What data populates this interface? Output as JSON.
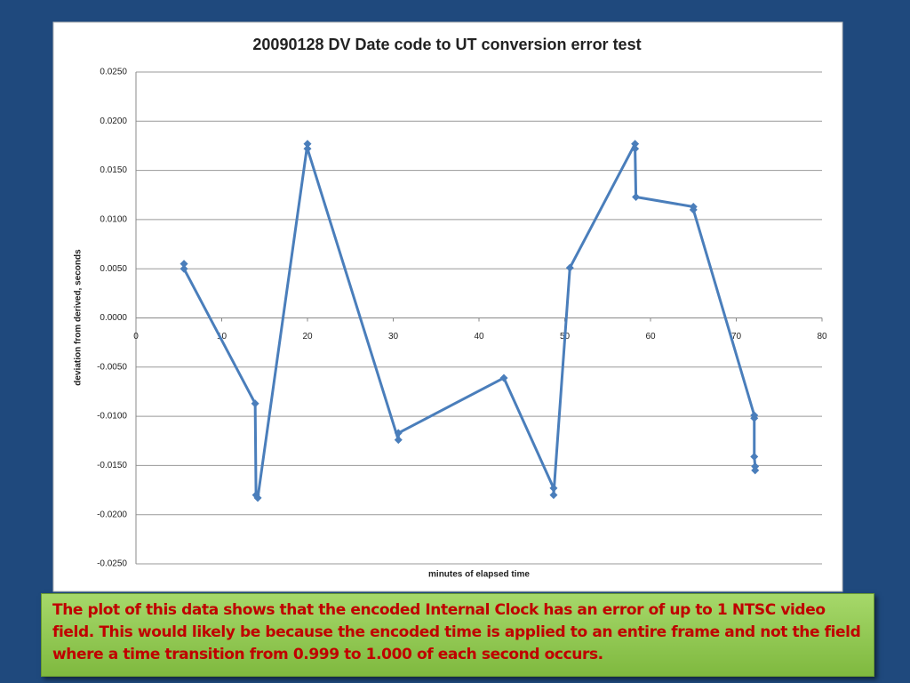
{
  "chart_data": {
    "type": "line",
    "title": "20090128 DV Date code to UT conversion error test",
    "x_label": "minutes of elapsed time",
    "y_label": "deviation from derived,  seconds",
    "x": [
      5.6,
      5.6,
      13.9,
      14.0,
      14.2,
      20.0,
      20.0,
      30.6,
      30.6,
      42.9,
      48.7,
      48.7,
      50.6,
      58.2,
      58.2,
      58.3,
      65.0,
      65.0,
      72.1,
      72.1,
      72.1,
      72.2,
      72.2
    ],
    "values": [
      0.0055,
      0.005,
      -0.0087,
      -0.018,
      -0.0183,
      0.0177,
      0.0172,
      -0.0124,
      -0.0117,
      -0.0061,
      -0.0173,
      -0.018,
      0.0051,
      0.0177,
      0.0172,
      0.0123,
      0.0113,
      0.011,
      -0.0099,
      -0.0102,
      -0.0141,
      -0.0151,
      -0.0155
    ],
    "color": "#4a7ebb",
    "xlim": [
      0,
      80
    ],
    "xticks": [
      0,
      10,
      20,
      30,
      40,
      50,
      60,
      70,
      80
    ],
    "ylim": [
      -0.025,
      0.025
    ],
    "yticks": [
      {
        "value": 0.025,
        "label": "0.0250"
      },
      {
        "value": 0.02,
        "label": "0.0200"
      },
      {
        "value": 0.015,
        "label": "0.0150"
      },
      {
        "value": 0.01,
        "label": "0.0100"
      },
      {
        "value": 0.005,
        "label": "0.0050"
      },
      {
        "value": 0,
        "label": "0.0000"
      },
      {
        "value": -0.005,
        "label": "-0.0050"
      },
      {
        "value": -0.01,
        "label": "-0.0100"
      },
      {
        "value": -0.015,
        "label": "-0.0150"
      },
      {
        "value": -0.02,
        "label": "-0.0200"
      },
      {
        "value": -0.025,
        "label": "-0.0250"
      }
    ],
    "grid": true
  },
  "caption": "The plot of this data shows that the encoded Internal Clock has an error of up to 1 NTSC video field. This would likely be because the encoded time is applied to an entire frame and not the field where a time transition from 0.999 to 1.000 of each second occurs."
}
